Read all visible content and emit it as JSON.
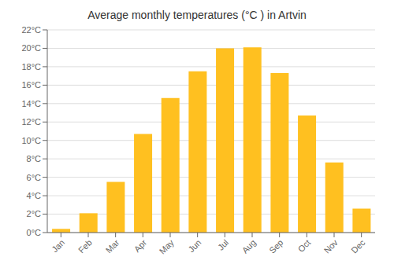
{
  "chart_data": {
    "type": "bar",
    "title": "Average monthly temperatures (°C ) in Artvin",
    "categories": [
      "Jan",
      "Feb",
      "Mar",
      "Apr",
      "May",
      "Jun",
      "Jul",
      "Aug",
      "Sep",
      "Oct",
      "Nov",
      "Dec"
    ],
    "values": [
      0.4,
      2.1,
      5.5,
      10.7,
      14.6,
      17.5,
      20.0,
      20.1,
      17.3,
      12.7,
      7.6,
      2.6
    ],
    "color": "#FFC020",
    "ylim": [
      0,
      22
    ],
    "yticks": [
      {
        "value": 0,
        "label": "0°C"
      },
      {
        "value": 2,
        "label": "2°C"
      },
      {
        "value": 4,
        "label": "4°C"
      },
      {
        "value": 6,
        "label": "6°C"
      },
      {
        "value": 8,
        "label": "8°C"
      },
      {
        "value": 10,
        "label": "10°C"
      },
      {
        "value": 12,
        "label": "12°C"
      },
      {
        "value": 14,
        "label": "14°C"
      },
      {
        "value": 16,
        "label": "16°C"
      },
      {
        "value": 18,
        "label": "18°C"
      },
      {
        "value": 20,
        "label": "20°C"
      },
      {
        "value": 22,
        "label": "22°C"
      }
    ],
    "grid": true
  }
}
